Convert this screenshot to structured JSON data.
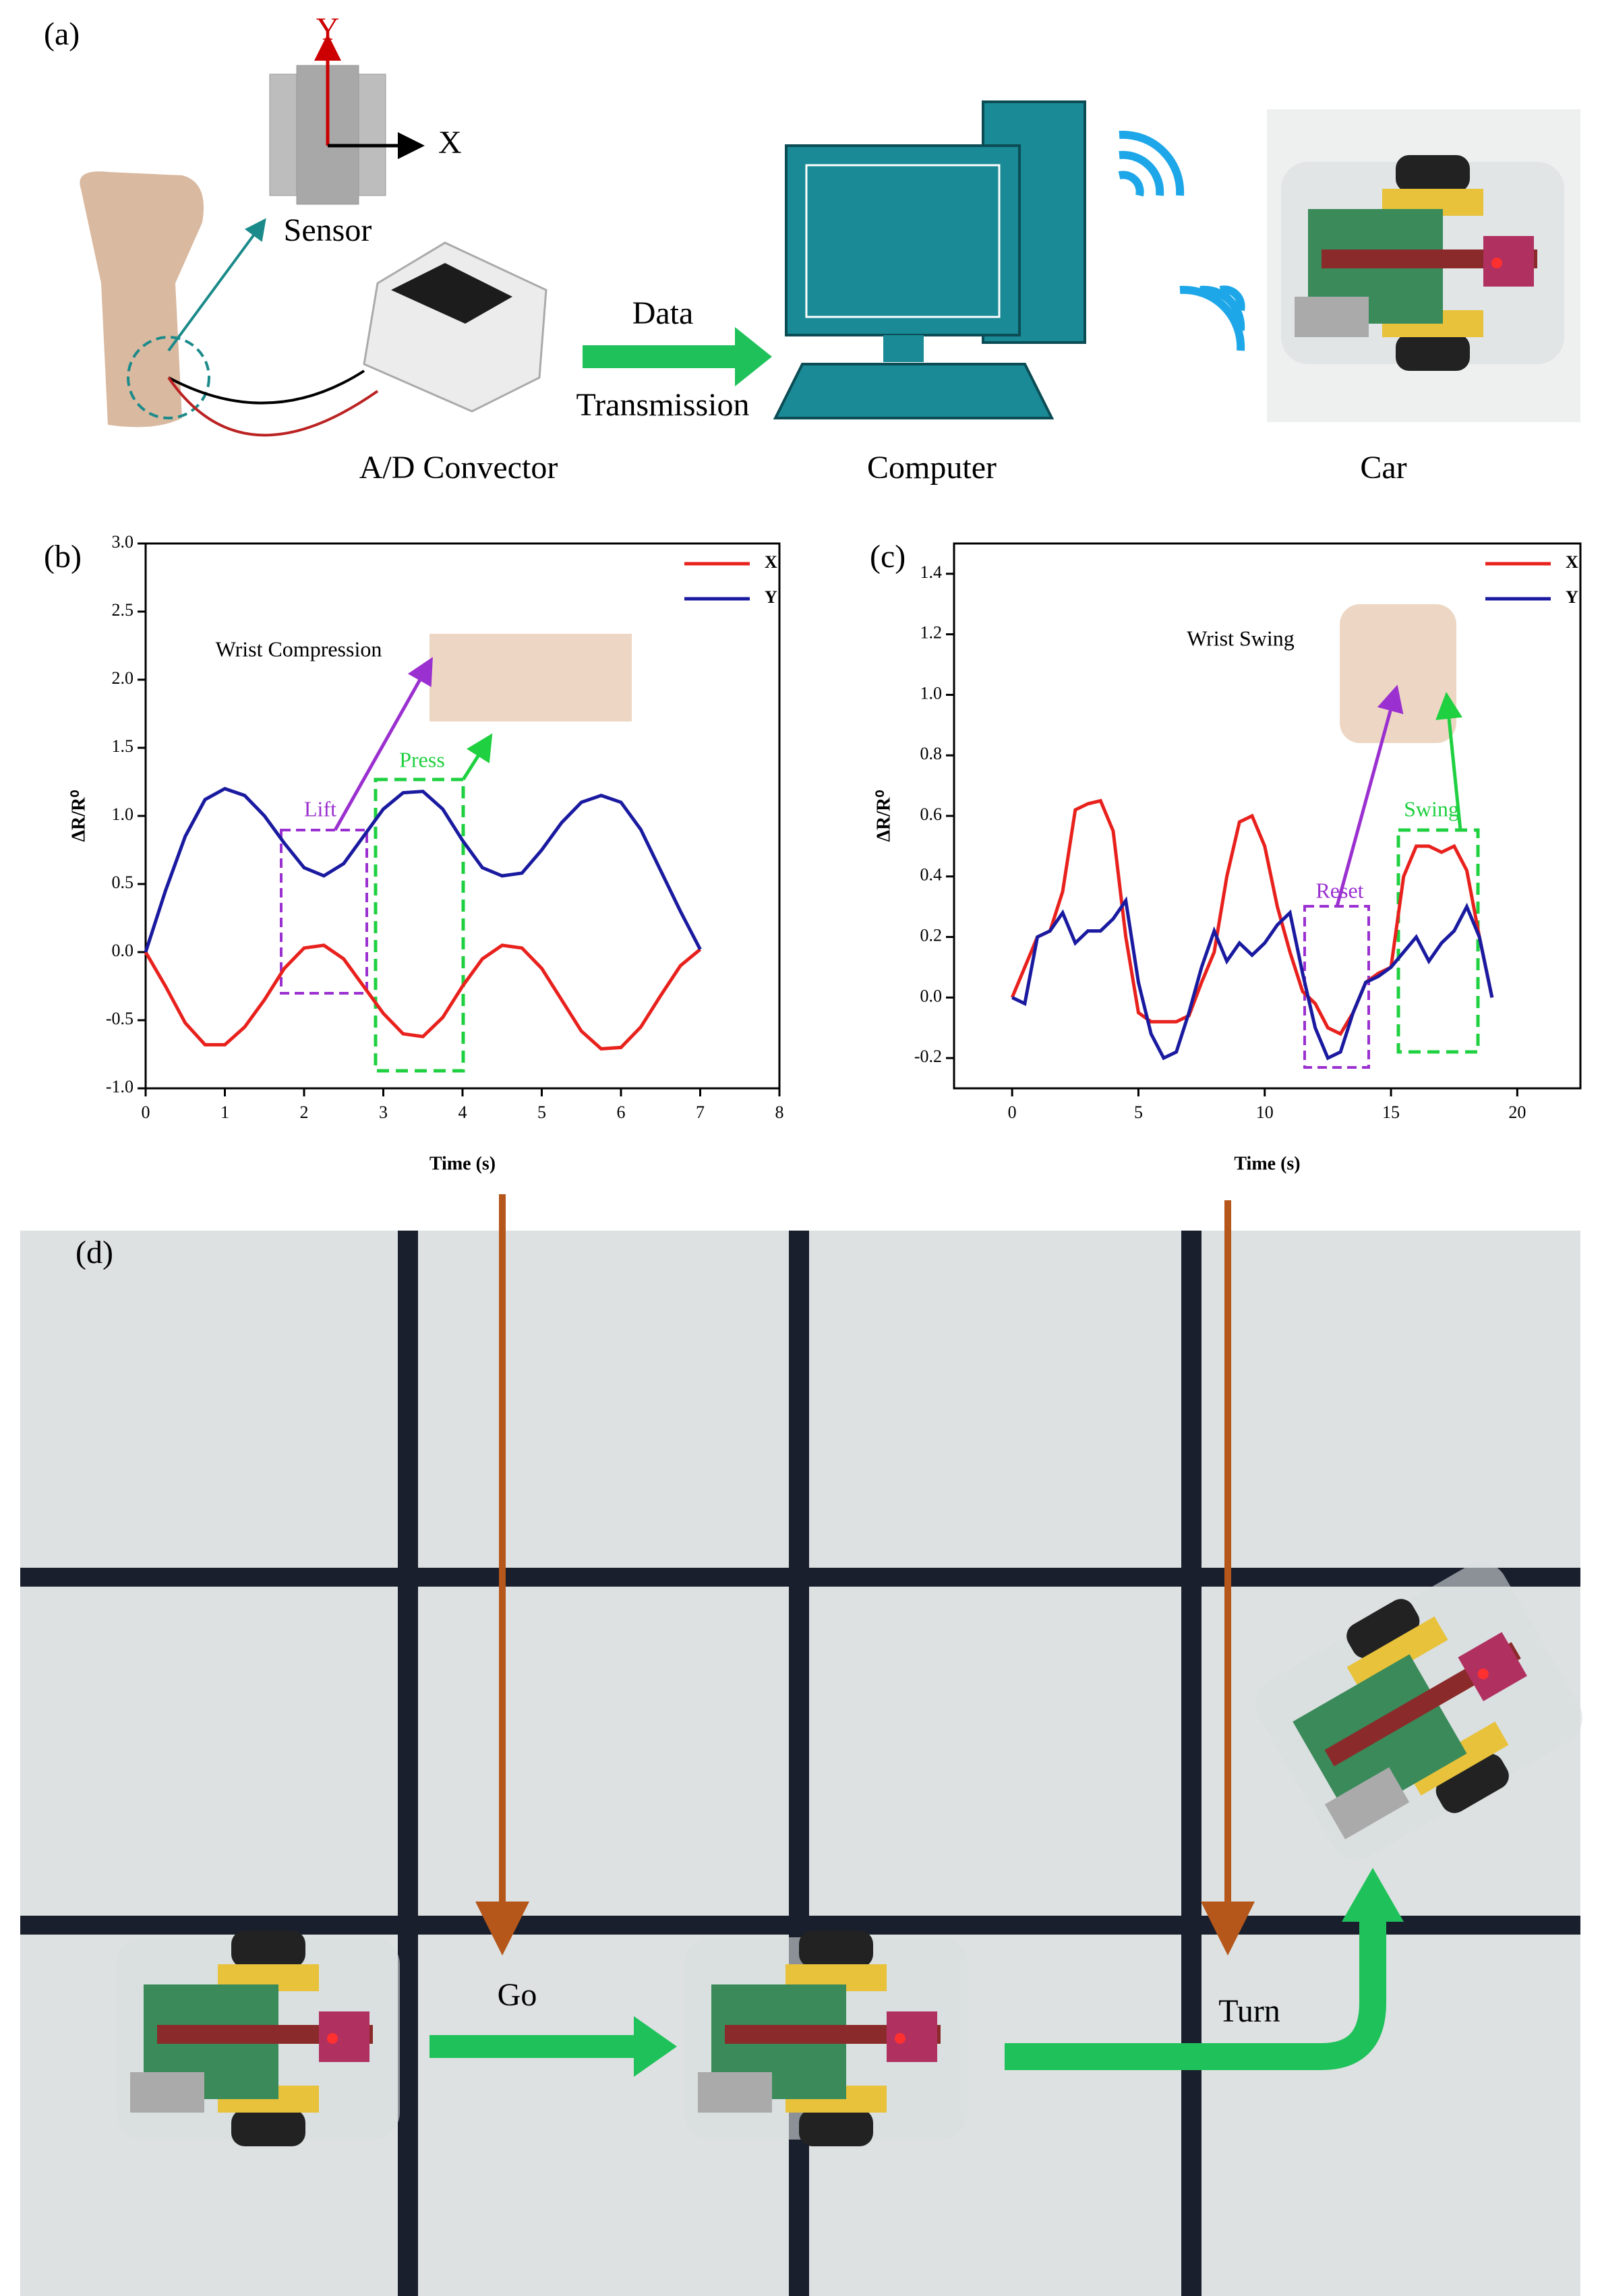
{
  "panel_a": {
    "label": "(a)",
    "sensor_y": "Y",
    "sensor_x": "X",
    "sensor": "Sensor",
    "converter": "A/D Convector",
    "data": "Data",
    "transmission": "Transmission",
    "computer": "Computer",
    "car": "Car"
  },
  "chart_data": [
    {
      "type": "line",
      "panel": "(b)",
      "xlabel": "Time (s)",
      "ylabel": "ΔR/R⁰",
      "annotation": "Wrist Compression",
      "lift": "Lift",
      "press": "Press",
      "xlim": [
        0,
        8
      ],
      "xticks": [
        0,
        1,
        2,
        3,
        4,
        5,
        6,
        7,
        8
      ],
      "ylim": [
        -1,
        3
      ],
      "yticks": [
        {
          "value": -1,
          "label": "-1.0"
        },
        -0.5,
        {
          "value": 0,
          "label": "0.0"
        },
        0.5,
        {
          "value": 1,
          "label": "1.0"
        },
        1.5,
        {
          "value": 2,
          "label": "2.0"
        },
        2.5,
        {
          "value": 3,
          "label": "3.0"
        }
      ],
      "x": [
        0,
        0.25,
        0.5,
        0.75,
        1,
        1.25,
        1.5,
        1.75,
        2,
        2.25,
        2.5,
        2.75,
        3,
        3.25,
        3.5,
        3.75,
        4,
        4.25,
        4.5,
        4.75,
        5,
        5.25,
        5.5,
        5.75,
        6,
        6.25,
        6.5,
        6.75,
        7
      ],
      "series": [
        {
          "name": "X",
          "color": "#e8211d",
          "values": [
            0,
            -0.25,
            -0.52,
            -0.68,
            -0.68,
            -0.55,
            -0.35,
            -0.12,
            0.03,
            0.05,
            -0.05,
            -0.25,
            -0.45,
            -0.6,
            -0.62,
            -0.48,
            -0.25,
            -0.05,
            0.05,
            0.03,
            -0.12,
            -0.35,
            -0.58,
            -0.71,
            -0.7,
            -0.55,
            -0.32,
            -0.1,
            0.02
          ]
        },
        {
          "name": "Y",
          "color": "#1a1aa0",
          "values": [
            0,
            0.45,
            0.85,
            1.12,
            1.2,
            1.15,
            1,
            0.8,
            0.62,
            0.56,
            0.65,
            0.85,
            1.05,
            1.17,
            1.18,
            1.05,
            0.82,
            0.62,
            0.56,
            0.58,
            0.75,
            0.95,
            1.1,
            1.15,
            1.1,
            0.9,
            0.6,
            0.3,
            0.02
          ]
        }
      ]
    },
    {
      "type": "line",
      "panel": "(c)",
      "xlabel": "Time (s)",
      "ylabel": "ΔR/R⁰",
      "annotation": "Wrist Swing",
      "lift": "Reset",
      "press": "Swing",
      "xlim": [
        -2.3,
        22.5
      ],
      "xticks": [
        0,
        5,
        10,
        15,
        20
      ],
      "ylim": [
        -0.3,
        1.5
      ],
      "yticks": [
        -0.2,
        {
          "value": 0,
          "label": "0.0"
        },
        0.2,
        0.4,
        0.6,
        0.8,
        {
          "value": 1,
          "label": "1.0"
        },
        1.2,
        1.4
      ],
      "x": [
        0,
        0.5,
        1,
        1.5,
        2,
        2.5,
        3,
        3.5,
        4,
        4.5,
        5,
        5.5,
        6,
        6.5,
        7,
        7.5,
        8,
        8.5,
        9,
        9.5,
        10,
        10.5,
        11,
        11.5,
        12,
        12.5,
        13,
        13.5,
        14,
        14.5,
        15,
        15.5,
        16,
        16.5,
        17,
        17.5,
        18,
        18.5,
        19
      ],
      "series": [
        {
          "name": "X",
          "color": "#e8211d",
          "values": [
            0,
            0.1,
            0.2,
            0.22,
            0.35,
            0.62,
            0.64,
            0.65,
            0.55,
            0.2,
            -0.05,
            -0.08,
            -0.08,
            -0.08,
            -0.06,
            0.05,
            0.15,
            0.4,
            0.58,
            0.6,
            0.5,
            0.3,
            0.15,
            0.02,
            -0.02,
            -0.1,
            -0.12,
            -0.05,
            0.05,
            0.08,
            0.1,
            0.4,
            0.5,
            0.5,
            0.48,
            0.5,
            0.42,
            0.2,
            0
          ]
        },
        {
          "name": "Y",
          "color": "#1a1aa0",
          "values": [
            0,
            -0.02,
            0.2,
            0.22,
            0.28,
            0.18,
            0.22,
            0.22,
            0.26,
            0.32,
            0.05,
            -0.12,
            -0.2,
            -0.18,
            -0.05,
            0.1,
            0.22,
            0.12,
            0.18,
            0.14,
            0.18,
            0.24,
            0.28,
            0.08,
            -0.1,
            -0.2,
            -0.18,
            -0.05,
            0.05,
            0.07,
            0.1,
            0.15,
            0.2,
            0.12,
            0.18,
            0.22,
            0.3,
            0.2,
            0
          ]
        }
      ]
    }
  ],
  "panel_d": {
    "label": "(d)",
    "go": "Go",
    "turn": "Turn"
  }
}
